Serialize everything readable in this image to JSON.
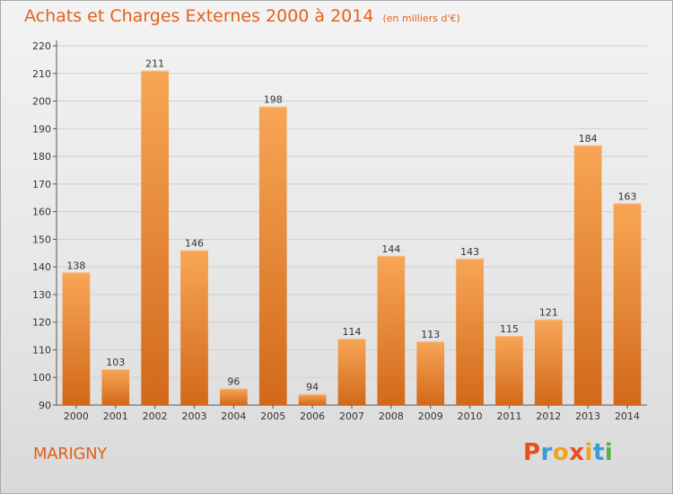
{
  "header": {
    "title": "Achats et Charges Externes 2000 à 2014",
    "unit": "(en milliers d'€)"
  },
  "footer": {
    "commune": "MARIGNY",
    "logo_text": "Proxiti"
  },
  "colors": {
    "title": "#e2621b",
    "bar_light": "#f7a656",
    "bar_dark": "#d2691a",
    "grid": "#cfcfcf",
    "logo": [
      "#e94e1b",
      "#3a9ad9",
      "#f0a31b",
      "#e94e1b",
      "#f0a31b",
      "#3a9ad9",
      "#56b046"
    ]
  },
  "chart_data": {
    "type": "bar",
    "title": "Achats et Charges Externes 2000 à 2014",
    "ylabel": "",
    "xlabel": "",
    "ylim": [
      90,
      220
    ],
    "ytick_step": 10,
    "grid": true,
    "categories": [
      "2000",
      "2001",
      "2002",
      "2003",
      "2004",
      "2005",
      "2006",
      "2007",
      "2008",
      "2009",
      "2010",
      "2011",
      "2012",
      "2013",
      "2014"
    ],
    "values": [
      138,
      103,
      211,
      146,
      96,
      198,
      94,
      114,
      144,
      113,
      143,
      115,
      121,
      184,
      163
    ]
  }
}
